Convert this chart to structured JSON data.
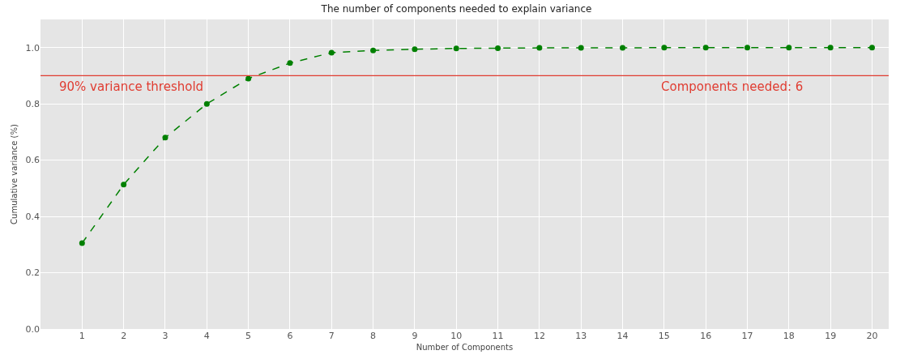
{
  "chart_data": {
    "type": "line",
    "title": "The number of components needed to explain variance",
    "xlabel": "Number of Components",
    "ylabel": "Cumulative variance (%)",
    "x": [
      1,
      2,
      3,
      4,
      5,
      6,
      7,
      8,
      9,
      10,
      11,
      12,
      13,
      14,
      15,
      16,
      17,
      18,
      19,
      20
    ],
    "series": [
      {
        "color": "#008000",
        "values": [
          0.305,
          0.513,
          0.68,
          0.8,
          0.89,
          0.945,
          0.982,
          0.99,
          0.994,
          0.997,
          0.998,
          0.999,
          0.999,
          0.999,
          1.0,
          1.0,
          1.0,
          1.0,
          1.0,
          1.0
        ]
      }
    ],
    "xlim": [
      0,
      20.4
    ],
    "xticks": [
      1,
      2,
      3,
      4,
      5,
      6,
      7,
      8,
      9,
      10,
      11,
      12,
      13,
      14,
      15,
      16,
      17,
      18,
      19,
      20
    ],
    "ylim": [
      0,
      1.1
    ],
    "yticks": [
      {
        "value": 0,
        "label": "0.0"
      },
      {
        "value": 0.2,
        "label": "0.2"
      },
      {
        "value": 0.4,
        "label": "0.4"
      },
      {
        "value": 0.6,
        "label": "0.6"
      },
      {
        "value": 0.8,
        "label": "0.8"
      },
      {
        "value": 1.0,
        "label": "1.0"
      }
    ],
    "ref_lines": [
      {
        "axis": "y",
        "value": 0.9,
        "color": "#e03c31"
      }
    ],
    "annotations": [
      "90% variance threshold",
      "Components needed: 6"
    ],
    "grid": true,
    "marker": "circle",
    "line_style": "dashed"
  }
}
